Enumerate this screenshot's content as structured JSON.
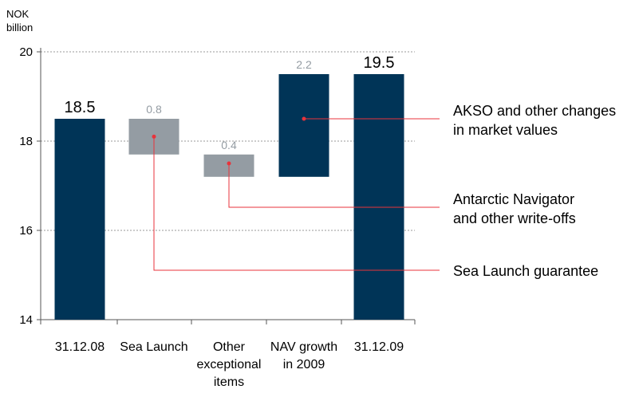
{
  "chart_data": {
    "type": "bar",
    "subtype": "waterfall",
    "unit_label": [
      "NOK",
      "billion"
    ],
    "ylim": [
      14,
      20
    ],
    "yticks": [
      14,
      16,
      18,
      20
    ],
    "grid": true,
    "categories": [
      [
        "31.12.08"
      ],
      [
        "Sea Launch"
      ],
      [
        "Other",
        "exceptional",
        "items"
      ],
      [
        "NAV growth",
        "in 2009"
      ],
      [
        "31.12.09"
      ]
    ],
    "bars": [
      {
        "bottom": 14,
        "top": 18.5,
        "label": "18.5",
        "kind": "total"
      },
      {
        "bottom": 17.7,
        "top": 18.5,
        "label": "0.8",
        "kind": "decrease"
      },
      {
        "bottom": 17.2,
        "top": 17.7,
        "label": "0.4",
        "kind": "decrease"
      },
      {
        "bottom": 17.2,
        "top": 19.5,
        "label": "2.2",
        "kind": "increase"
      },
      {
        "bottom": 14,
        "top": 19.5,
        "label": "19.5",
        "kind": "total"
      }
    ],
    "annotations": [
      {
        "bar": 3,
        "y": 18.5,
        "lines": [
          "AKSO and other changes",
          "in market values"
        ]
      },
      {
        "bar": 2,
        "y": 17.5,
        "lines": [
          "Antarctic Navigator",
          "and other write-offs"
        ]
      },
      {
        "bar": 1,
        "y": 18.1,
        "lines": [
          "Sea Launch guarantee"
        ]
      }
    ],
    "colors": {
      "total": "#003457",
      "increase": "#003457",
      "decrease": "#949ca3",
      "decrease_label": "#949ca3",
      "total_label": "#000000",
      "annotation_line": "#e8333b",
      "grid": "#9a9a9a",
      "axis": "#555555"
    }
  }
}
